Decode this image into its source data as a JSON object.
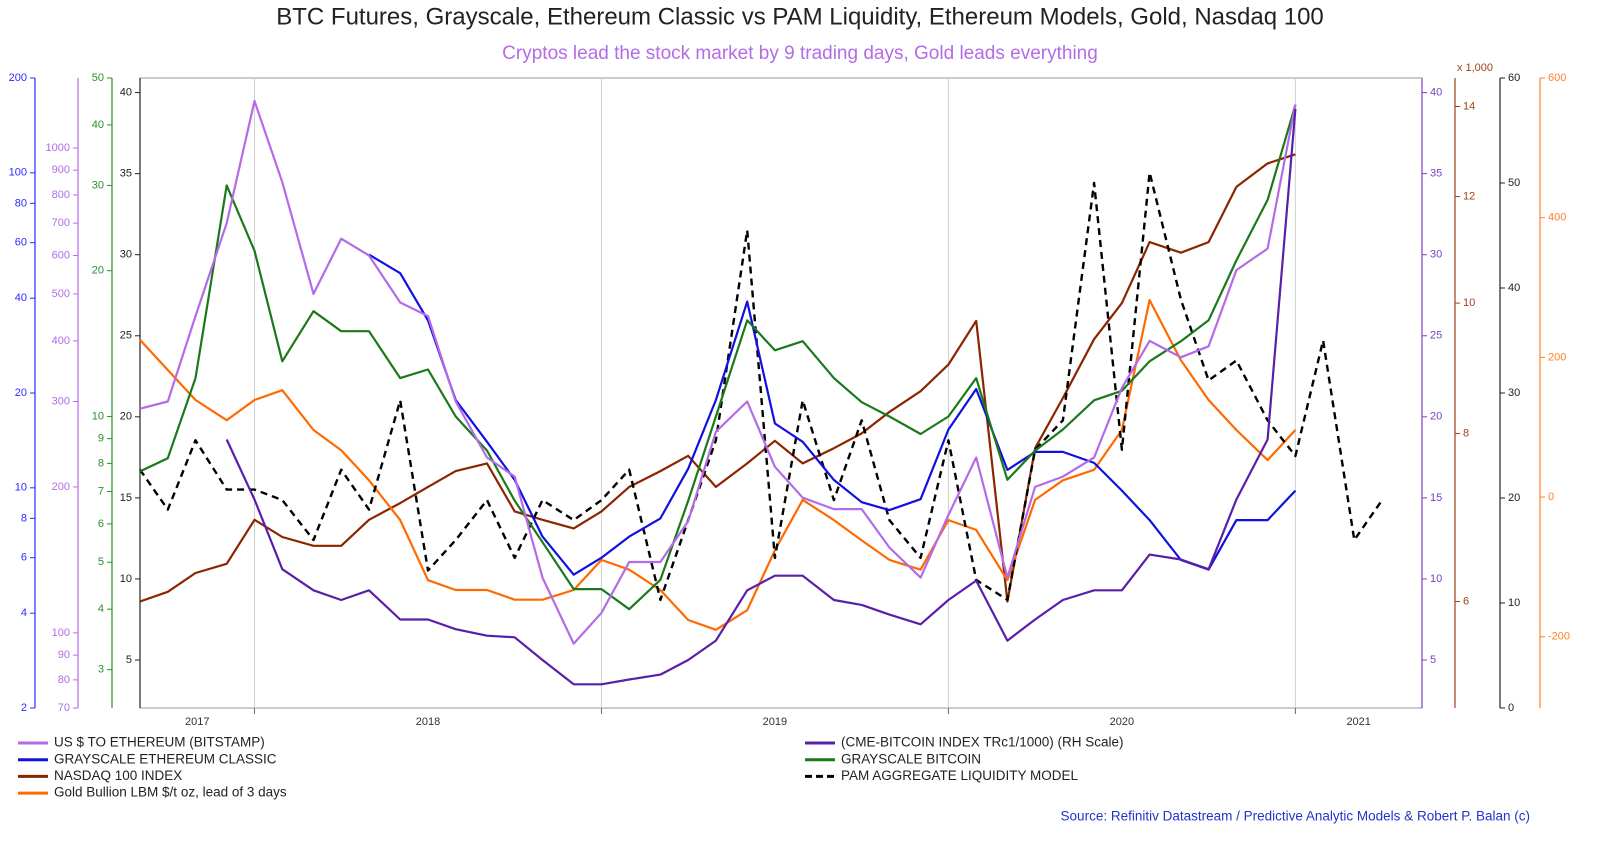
{
  "chart_data": {
    "type": "line",
    "title": "BTC Futures, Grayscale, Ethereum Classic vs PAM Liquidity, Ethereum Models, Gold, Nasdaq 100",
    "subtitle": "Cryptos lead the stock market by 9 trading days, Gold leads everything",
    "source": "Source: Refinitiv Datastream / Predictive Analytic Models & Robert P. Balan (c)",
    "x": [
      2017.67,
      2017.75,
      2017.83,
      2017.92,
      2018.0,
      2018.08,
      2018.17,
      2018.25,
      2018.33,
      2018.42,
      2018.5,
      2018.58,
      2018.67,
      2018.75,
      2018.83,
      2018.92,
      2019.0,
      2019.08,
      2019.17,
      2019.25,
      2019.33,
      2019.42,
      2019.5,
      2019.58,
      2019.67,
      2019.75,
      2019.83,
      2019.92,
      2020.0,
      2020.08,
      2020.17,
      2020.25,
      2020.33,
      2020.42,
      2020.5,
      2020.58,
      2020.67,
      2020.75,
      2020.83,
      2020.92,
      2021.0,
      2021.08,
      2021.17,
      2021.25
    ],
    "xlim": [
      2017.67,
      2021.365
    ],
    "xticks": [
      2017,
      2018,
      2019,
      2020,
      2021
    ],
    "xgrid": true,
    "ylim": [
      2.04,
      40.9
    ],
    "yticks": [
      5,
      10,
      15,
      20,
      25,
      30,
      35,
      40
    ],
    "ycolor": "#222222",
    "ymirrorcolor": "#7b3fc4",
    "y2lim": [
      2,
      200
    ],
    "y2log": true,
    "y2ticks": [
      2,
      4,
      6,
      8,
      10,
      20,
      40,
      60,
      80,
      100,
      200
    ],
    "y2color": "#2b2bff",
    "y3lim": [
      70,
      1394
    ],
    "y3log": true,
    "y3ticks": [
      70,
      80,
      90,
      100,
      200,
      300,
      400,
      500,
      600,
      700,
      800,
      900,
      1000
    ],
    "y3color": "#b36be8",
    "y4lim": [
      2.5,
      50
    ],
    "y4log": true,
    "y4ticks": [
      3,
      4,
      5,
      6,
      7,
      8,
      9,
      10,
      20,
      30,
      40,
      50
    ],
    "y4color": "#2a8f2a",
    "y5lim": [
      5,
      14.7
    ],
    "y5log": true,
    "y5ticks": [
      6,
      8,
      10,
      12,
      14
    ],
    "y5color": "#a0401a",
    "y5unit": "x 1,000",
    "y6lim": [
      0,
      60
    ],
    "y6ticks": [
      0,
      10,
      20,
      30,
      40,
      50,
      60
    ],
    "y6color": "#222222",
    "y7lim": [
      -302,
      600
    ],
    "y7ticks": [
      -200,
      0,
      200,
      400,
      600
    ],
    "y7color": "#ff7f27",
    "series": [
      {
        "name": "US $ TO ETHEREUM (BITSTAMP)",
        "color": "#b36be8",
        "axis": "y3",
        "values": [
          290,
          300,
          450,
          700,
          1250,
          850,
          500,
          650,
          600,
          480,
          450,
          300,
          230,
          210,
          130,
          95,
          110,
          140,
          140,
          170,
          260,
          300,
          220,
          190,
          180,
          180,
          150,
          130,
          175,
          230,
          130,
          200,
          210,
          230,
          320,
          400,
          370,
          390,
          560,
          620,
          1230,
          null,
          null,
          null
        ]
      },
      {
        "name": "(CME-BITCOIN INDEX TRc1/1000) (RH Scale)",
        "color": "#5a1fa8",
        "axis": "y",
        "values": [
          null,
          null,
          null,
          18.6,
          14.9,
          10.6,
          9.3,
          8.7,
          9.3,
          7.5,
          7.5,
          6.9,
          6.5,
          6.4,
          5.0,
          3.5,
          3.5,
          3.8,
          4.1,
          5.0,
          6.2,
          9.3,
          10.2,
          10.2,
          8.7,
          8.4,
          7.8,
          7.2,
          8.7,
          9.9,
          6.2,
          7.5,
          8.7,
          9.3,
          9.3,
          11.5,
          11.2,
          10.6,
          14.9,
          18.6,
          39,
          null,
          null,
          null
        ]
      },
      {
        "name": "GRAYSCALE ETHEREUM CLASSIC",
        "color": "#1010e0",
        "axis": "y2",
        "values": [
          null,
          null,
          null,
          null,
          null,
          null,
          null,
          null,
          55,
          48,
          34,
          19,
          14,
          10.6,
          7.0,
          5.3,
          6,
          7,
          8,
          11.5,
          19,
          39,
          16,
          14,
          10.6,
          9,
          8.5,
          9.2,
          15.3,
          20.6,
          11.4,
          13,
          13,
          12,
          9.8,
          7.9,
          5.9,
          5.5,
          7.9,
          7.9,
          9.8,
          null,
          null,
          null
        ]
      },
      {
        "name": "GRAYSCALE BITCOIN",
        "color": "#1a7a1a",
        "axis": "y4",
        "values": [
          7.7,
          8.2,
          12,
          30,
          22,
          13,
          16.5,
          15,
          15,
          12,
          12.5,
          10,
          8.5,
          6.7,
          5.5,
          4.4,
          4.4,
          4,
          4.6,
          6.7,
          10,
          15.8,
          13.7,
          14.3,
          12,
          10.7,
          10,
          9.2,
          10,
          12,
          7.4,
          8.5,
          9.4,
          10.8,
          11.3,
          13,
          14.3,
          15.8,
          21,
          28,
          44,
          null,
          null,
          null
        ]
      },
      {
        "name": "NASDAQ 100 INDEX",
        "color": "#8b2500",
        "axis": "y5",
        "values": [
          6.0,
          6.1,
          6.3,
          6.4,
          6.9,
          6.7,
          6.6,
          6.6,
          6.9,
          7.1,
          7.3,
          7.5,
          7.6,
          7.0,
          6.9,
          6.8,
          7.0,
          7.3,
          7.5,
          7.7,
          7.3,
          7.6,
          7.9,
          7.6,
          7.8,
          8.0,
          8.3,
          8.6,
          9.0,
          9.7,
          6.0,
          7.8,
          8.5,
          9.4,
          10.0,
          11.1,
          10.9,
          11.1,
          12.2,
          12.7,
          12.9,
          null,
          null,
          null
        ]
      },
      {
        "name": "PAM AGGREGATE LIQUIDITY MODEL",
        "color": "#000000",
        "axis": "y6",
        "dash": true,
        "values": [
          22.7,
          18.9,
          25.5,
          20.8,
          20.8,
          19.8,
          16,
          22.7,
          18.9,
          29.3,
          13.1,
          16,
          19.8,
          14.3,
          19.8,
          17.9,
          19.8,
          22.7,
          10.3,
          17.9,
          25.5,
          45.5,
          14.3,
          29.3,
          19.8,
          27.4,
          17.9,
          14.3,
          25.5,
          12.2,
          10.3,
          24.6,
          27.4,
          50,
          24.6,
          51,
          38.9,
          31.2,
          33.1,
          27.4,
          24,
          35,
          16,
          19.8
        ]
      },
      {
        "name": "Gold Bullion LBM $/t oz, lead of 3 days",
        "color": "#ff6a00",
        "axis": "y7",
        "values": [
          225,
          182,
          139,
          110,
          139,
          153,
          96,
          67,
          24,
          -33,
          -119,
          -133,
          -133,
          -147,
          -147,
          -133,
          -90,
          -104,
          -133,
          -176,
          -190,
          -162,
          -76,
          -4,
          -33,
          -62,
          -90,
          -104,
          -33,
          -47,
          -119,
          -4,
          24,
          39,
          96,
          282,
          196,
          139,
          96,
          53,
          96,
          null,
          null,
          null
        ]
      }
    ]
  }
}
